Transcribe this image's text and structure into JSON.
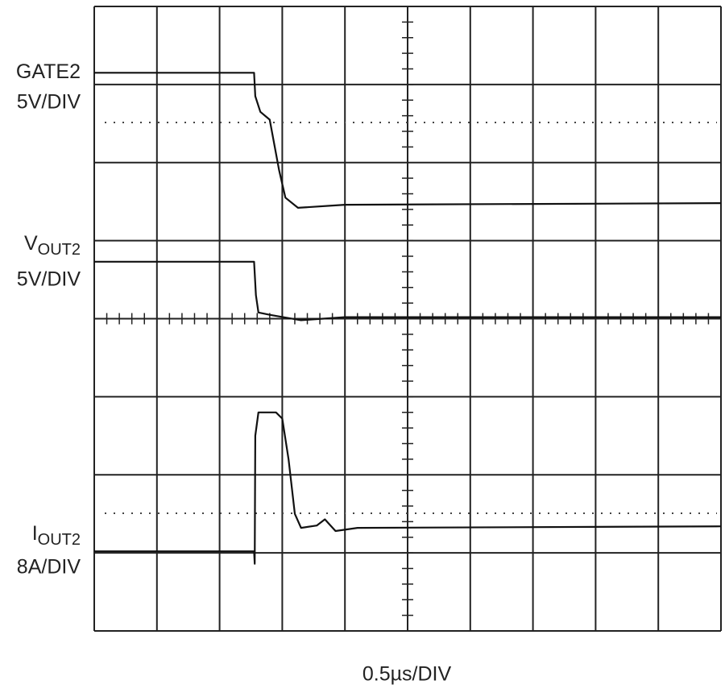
{
  "chart_data": {
    "type": "line",
    "x_label": "0.5µs/DIV",
    "xlim": [
      0,
      10
    ],
    "ylim": [
      0,
      8
    ],
    "grid": true,
    "series": [
      {
        "label": "GATE2",
        "scale": "5V/DIV",
        "color": "#111111",
        "x": [
          0,
          2.55,
          2.57,
          2.65,
          2.8,
          2.95,
          3.05,
          3.25,
          4,
          10
        ],
        "values": [
          7.15,
          7.15,
          6.85,
          6.65,
          6.55,
          5.9,
          5.55,
          5.42,
          5.46,
          5.48
        ]
      },
      {
        "label": "V",
        "label_sub": "OUT2",
        "scale": "5V/DIV",
        "color": "#111111",
        "x": [
          0,
          2.55,
          2.58,
          2.62,
          2.8,
          3.3,
          4,
          10
        ],
        "values": [
          4.73,
          4.73,
          4.3,
          4.08,
          4.05,
          3.98,
          4.02,
          4.02
        ]
      },
      {
        "label": "I",
        "label_sub": "OUT2",
        "scale": "8A/DIV",
        "color": "#111111",
        "x": [
          0,
          2.55,
          2.56,
          2.57,
          2.62,
          2.9,
          3.0,
          3.1,
          3.2,
          3.3,
          3.55,
          3.68,
          3.85,
          4.2,
          10
        ],
        "values": [
          1.02,
          1.02,
          0.86,
          2.5,
          2.8,
          2.8,
          2.72,
          2.2,
          1.5,
          1.32,
          1.35,
          1.43,
          1.28,
          1.32,
          1.34
        ]
      }
    ]
  }
}
